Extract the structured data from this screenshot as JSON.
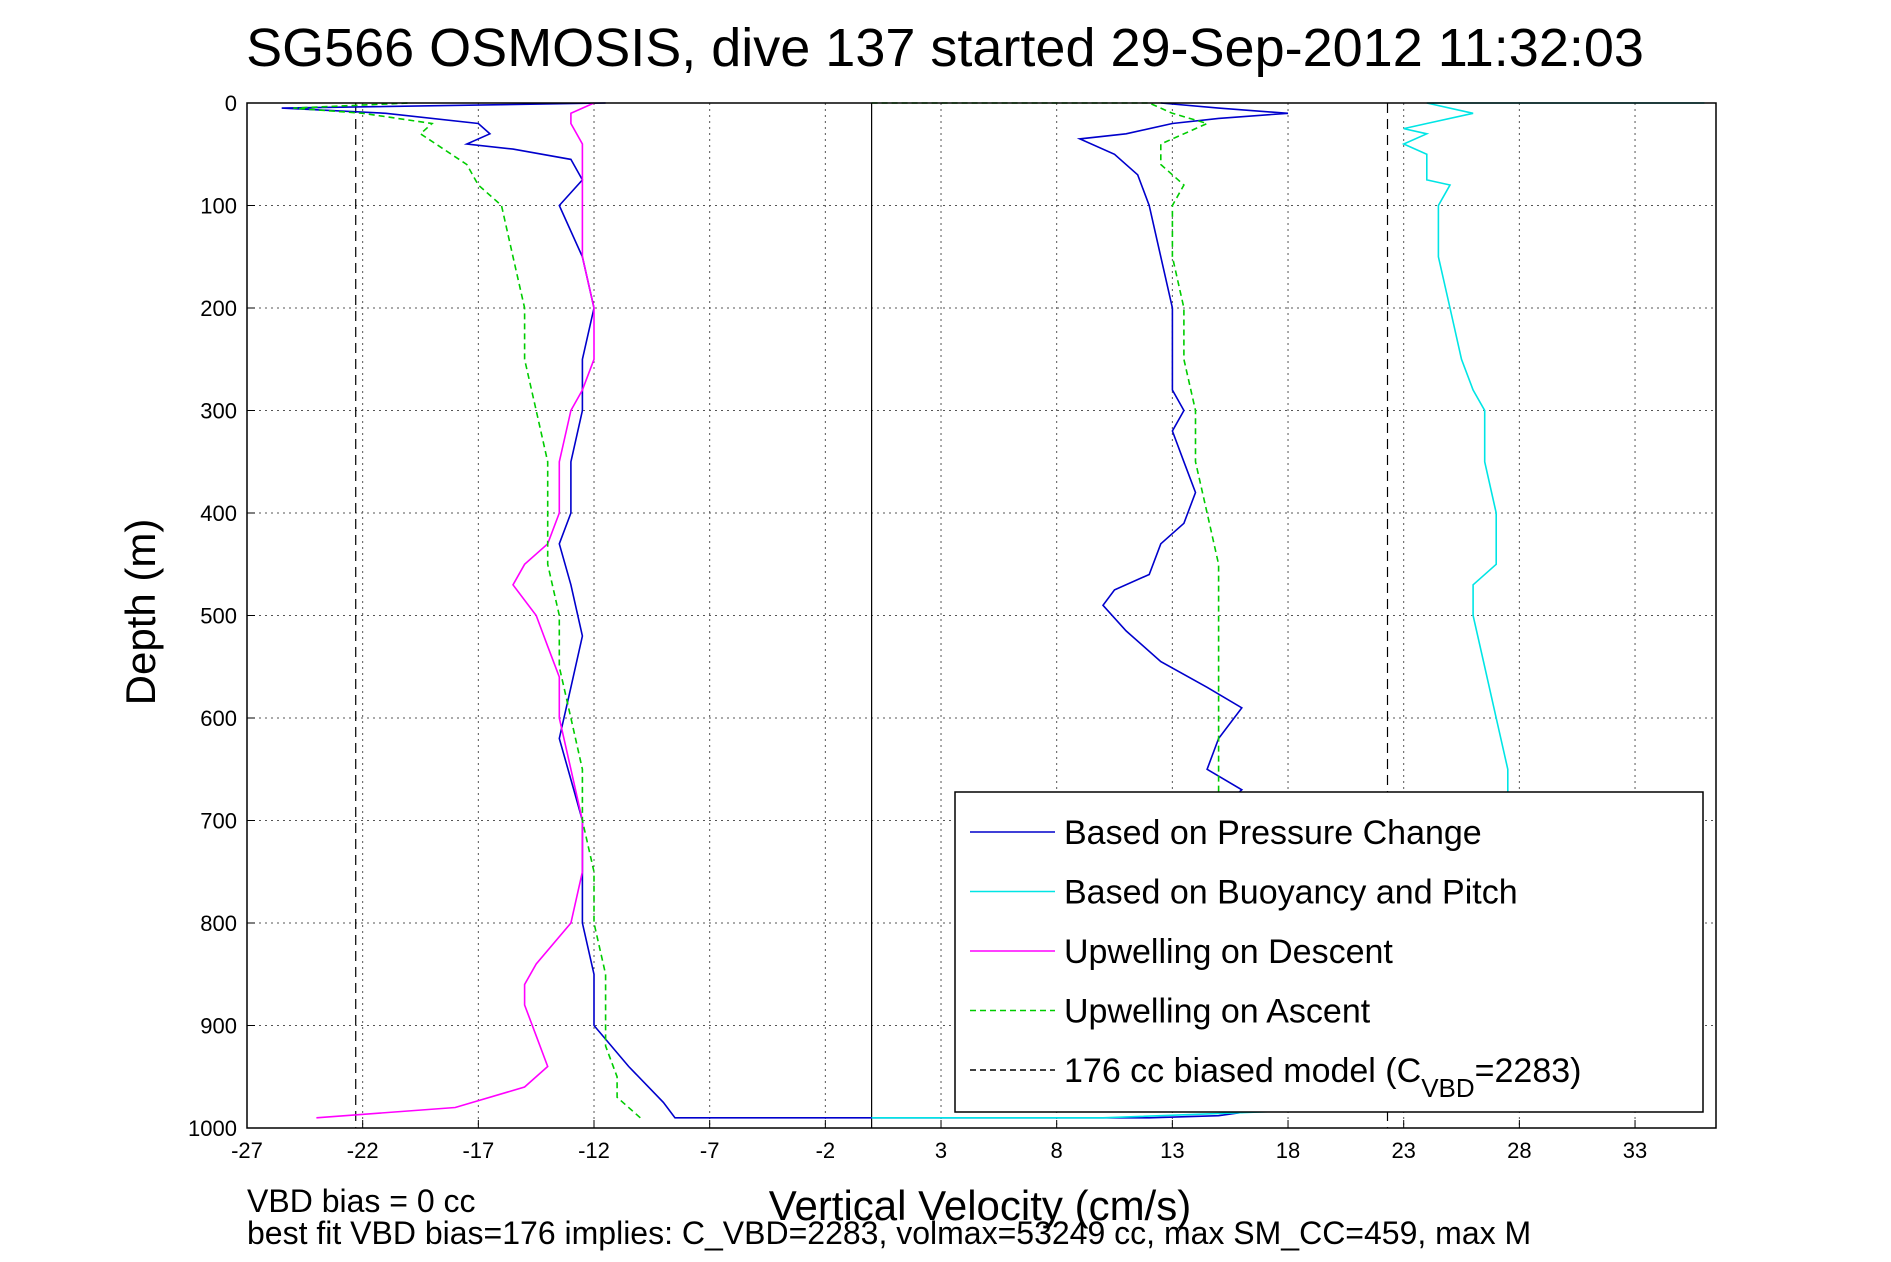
{
  "chart_data": {
    "type": "line",
    "title": "SG566 OSMOSIS, dive 137 started 29-Sep-2012 11:32:03",
    "xlabel": "Vertical Velocity (cm/s)",
    "ylabel": "Depth (m)",
    "xlim": [
      -27,
      36.5
    ],
    "ylim": [
      0,
      1000
    ],
    "y_reversed": true,
    "grid": true,
    "x_ticks": [
      "-27",
      "-22",
      "-17",
      "-12",
      "-7",
      "-2",
      "3",
      "8",
      "13",
      "18",
      "23",
      "28",
      "33"
    ],
    "y_ticks": [
      "0",
      "100",
      "200",
      "300",
      "400",
      "500",
      "600",
      "700",
      "800",
      "900",
      "1000"
    ],
    "reference_lines": [
      {
        "x": 0,
        "style": "solid",
        "color": "#000000"
      },
      {
        "x": -22.3,
        "style": "dashed",
        "color": "#000000"
      },
      {
        "x": 22.3,
        "style": "dashed",
        "color": "#000000"
      }
    ],
    "legend": {
      "placement": "bottom-right",
      "entries": [
        {
          "label": "Based on Pressure Change",
          "color": "#0000cc",
          "style": "solid"
        },
        {
          "label": "Based on Buoyancy and Pitch",
          "color": "#00e5e5",
          "style": "solid"
        },
        {
          "label": "Upwelling on Descent",
          "color": "#ff00ff",
          "style": "solid"
        },
        {
          "label": "Upwelling on Ascent",
          "color": "#00cc00",
          "style": "dashed"
        },
        {
          "label": "176 cc biased model (C",
          "sub": "VBD",
          "suffix": "=2283)",
          "color": "#000000",
          "style": "dashed"
        }
      ]
    },
    "series": [
      {
        "name": "Based on Pressure Change",
        "color": "#0000cc",
        "style": "solid",
        "points": [
          [
            -11.5,
            0
          ],
          [
            -25.5,
            5
          ],
          [
            -21,
            10
          ],
          [
            -17,
            20
          ],
          [
            -16.5,
            30
          ],
          [
            -17.5,
            40
          ],
          [
            -15.5,
            45
          ],
          [
            -13,
            55
          ],
          [
            -12.5,
            75
          ],
          [
            -13.5,
            100
          ],
          [
            -12.5,
            150
          ],
          [
            -12,
            200
          ],
          [
            -12.5,
            250
          ],
          [
            -12.5,
            300
          ],
          [
            -13,
            350
          ],
          [
            -13,
            400
          ],
          [
            -13.5,
            430
          ],
          [
            -13,
            470
          ],
          [
            -12.5,
            520
          ],
          [
            -13,
            570
          ],
          [
            -13.5,
            620
          ],
          [
            -13,
            660
          ],
          [
            -12.5,
            700
          ],
          [
            -12.5,
            750
          ],
          [
            -12.5,
            800
          ],
          [
            -12,
            850
          ],
          [
            -12,
            900
          ],
          [
            -10.5,
            940
          ],
          [
            -9,
            975
          ],
          [
            -8.5,
            990
          ],
          [
            0,
            990
          ],
          [
            12,
            990
          ],
          [
            15,
            988
          ],
          [
            17.5,
            980
          ],
          [
            17,
            970
          ],
          [
            15.5,
            950
          ],
          [
            15,
            900
          ],
          [
            14.5,
            850
          ],
          [
            14.5,
            800
          ],
          [
            14.5,
            750
          ],
          [
            14.5,
            700
          ],
          [
            16,
            670
          ],
          [
            14.5,
            650
          ],
          [
            15,
            620
          ],
          [
            16,
            590
          ],
          [
            14.5,
            570
          ],
          [
            12.5,
            545
          ],
          [
            11,
            515
          ],
          [
            10,
            490
          ],
          [
            10.5,
            475
          ],
          [
            12,
            460
          ],
          [
            12.5,
            430
          ],
          [
            13.5,
            410
          ],
          [
            14,
            380
          ],
          [
            13.5,
            350
          ],
          [
            13,
            320
          ],
          [
            13.5,
            300
          ],
          [
            13,
            280
          ],
          [
            13,
            250
          ],
          [
            13,
            200
          ],
          [
            12.5,
            150
          ],
          [
            12,
            100
          ],
          [
            11.5,
            70
          ],
          [
            10.5,
            50
          ],
          [
            9,
            35
          ],
          [
            11,
            30
          ],
          [
            13,
            20
          ],
          [
            15,
            15
          ],
          [
            18,
            10
          ],
          [
            15,
            5
          ],
          [
            12.5,
            0
          ]
        ]
      },
      {
        "name": "Based on Buoyancy and Pitch",
        "color": "#00e5e5",
        "style": "solid",
        "points": [
          [
            36,
            0
          ],
          [
            24,
            0
          ],
          [
            26,
            10
          ],
          [
            24,
            20
          ],
          [
            23,
            25
          ],
          [
            24,
            30
          ],
          [
            23,
            40
          ],
          [
            24,
            50
          ],
          [
            24,
            60
          ],
          [
            24,
            75
          ],
          [
            25,
            80
          ],
          [
            24.5,
            100
          ],
          [
            24.5,
            150
          ],
          [
            25,
            200
          ],
          [
            25.5,
            250
          ],
          [
            26,
            280
          ],
          [
            26.5,
            300
          ],
          [
            26.5,
            350
          ],
          [
            27,
            400
          ],
          [
            27,
            450
          ],
          [
            26,
            470
          ],
          [
            26,
            500
          ],
          [
            26.5,
            550
          ],
          [
            27,
            600
          ],
          [
            27.5,
            650
          ],
          [
            27.5,
            680
          ],
          [
            26,
            700
          ],
          [
            25,
            750
          ],
          [
            24,
            800
          ],
          [
            23.5,
            850
          ],
          [
            23,
            900
          ],
          [
            22.5,
            950
          ],
          [
            22,
            980
          ],
          [
            10,
            990
          ],
          [
            0,
            990
          ]
        ]
      },
      {
        "name": "Upwelling on Descent",
        "color": "#ff00ff",
        "style": "solid",
        "points": [
          [
            -12,
            0
          ],
          [
            -13,
            10
          ],
          [
            -13,
            20
          ],
          [
            -12.5,
            40
          ],
          [
            -12.5,
            60
          ],
          [
            -12.5,
            80
          ],
          [
            -12.5,
            100
          ],
          [
            -12.5,
            150
          ],
          [
            -12,
            200
          ],
          [
            -12,
            250
          ],
          [
            -12.5,
            280
          ],
          [
            -13,
            300
          ],
          [
            -13.5,
            350
          ],
          [
            -13.5,
            400
          ],
          [
            -14,
            430
          ],
          [
            -15,
            450
          ],
          [
            -15.5,
            470
          ],
          [
            -14.5,
            500
          ],
          [
            -14,
            530
          ],
          [
            -13.5,
            560
          ],
          [
            -13.5,
            600
          ],
          [
            -13,
            650
          ],
          [
            -12.5,
            700
          ],
          [
            -12.5,
            750
          ],
          [
            -13,
            800
          ],
          [
            -14.5,
            840
          ],
          [
            -15,
            860
          ],
          [
            -15,
            880
          ],
          [
            -14.5,
            910
          ],
          [
            -14,
            940
          ],
          [
            -15,
            960
          ],
          [
            -18,
            980
          ],
          [
            -24,
            990
          ]
        ]
      },
      {
        "name": "Upwelling on Ascent",
        "color": "#00cc00",
        "style": "dashed",
        "points": [
          [
            -10,
            990
          ],
          [
            -11,
            970
          ],
          [
            -11,
            950
          ],
          [
            -11.5,
            920
          ],
          [
            -11.5,
            900
          ],
          [
            -11.5,
            850
          ],
          [
            -12,
            800
          ],
          [
            -12,
            750
          ],
          [
            -12.5,
            700
          ],
          [
            -12.5,
            650
          ],
          [
            -13,
            600
          ],
          [
            -13.5,
            550
          ],
          [
            -13.5,
            500
          ],
          [
            -14,
            450
          ],
          [
            -14,
            400
          ],
          [
            -14,
            350
          ],
          [
            -14.5,
            300
          ],
          [
            -15,
            250
          ],
          [
            -15,
            200
          ],
          [
            -15.5,
            150
          ],
          [
            -16,
            100
          ],
          [
            -17,
            80
          ],
          [
            -17.5,
            60
          ],
          [
            -18.5,
            45
          ],
          [
            -19.5,
            30
          ],
          [
            -19,
            20
          ],
          [
            -20.5,
            15
          ],
          [
            -22,
            10
          ],
          [
            -25,
            5
          ],
          [
            -20,
            0
          ]
        ]
      },
      {
        "name": "Upwelling on Ascent (shifted)",
        "color": "#00cc00",
        "style": "dashed",
        "points": [
          [
            0,
            0
          ],
          [
            12,
            0
          ],
          [
            13,
            10
          ],
          [
            14.5,
            20
          ],
          [
            13.5,
            30
          ],
          [
            12.5,
            40
          ],
          [
            12.5,
            60
          ],
          [
            13.5,
            80
          ],
          [
            13,
            100
          ],
          [
            13,
            150
          ],
          [
            13.5,
            200
          ],
          [
            13.5,
            250
          ],
          [
            14,
            300
          ],
          [
            14,
            350
          ],
          [
            14.5,
            400
          ],
          [
            15,
            450
          ],
          [
            15,
            500
          ],
          [
            15,
            550
          ],
          [
            15,
            600
          ],
          [
            15,
            650
          ],
          [
            15,
            700
          ],
          [
            15,
            750
          ],
          [
            15,
            800
          ],
          [
            15,
            850
          ],
          [
            15,
            900
          ],
          [
            15,
            950
          ],
          [
            15,
            980
          ]
        ]
      }
    ]
  },
  "footer": {
    "line1": "VBD bias = 0 cc",
    "line2": "best fit VBD bias=176 implies: C_VBD=2283, volmax=53249 cc, max SM_CC=459, max M"
  }
}
